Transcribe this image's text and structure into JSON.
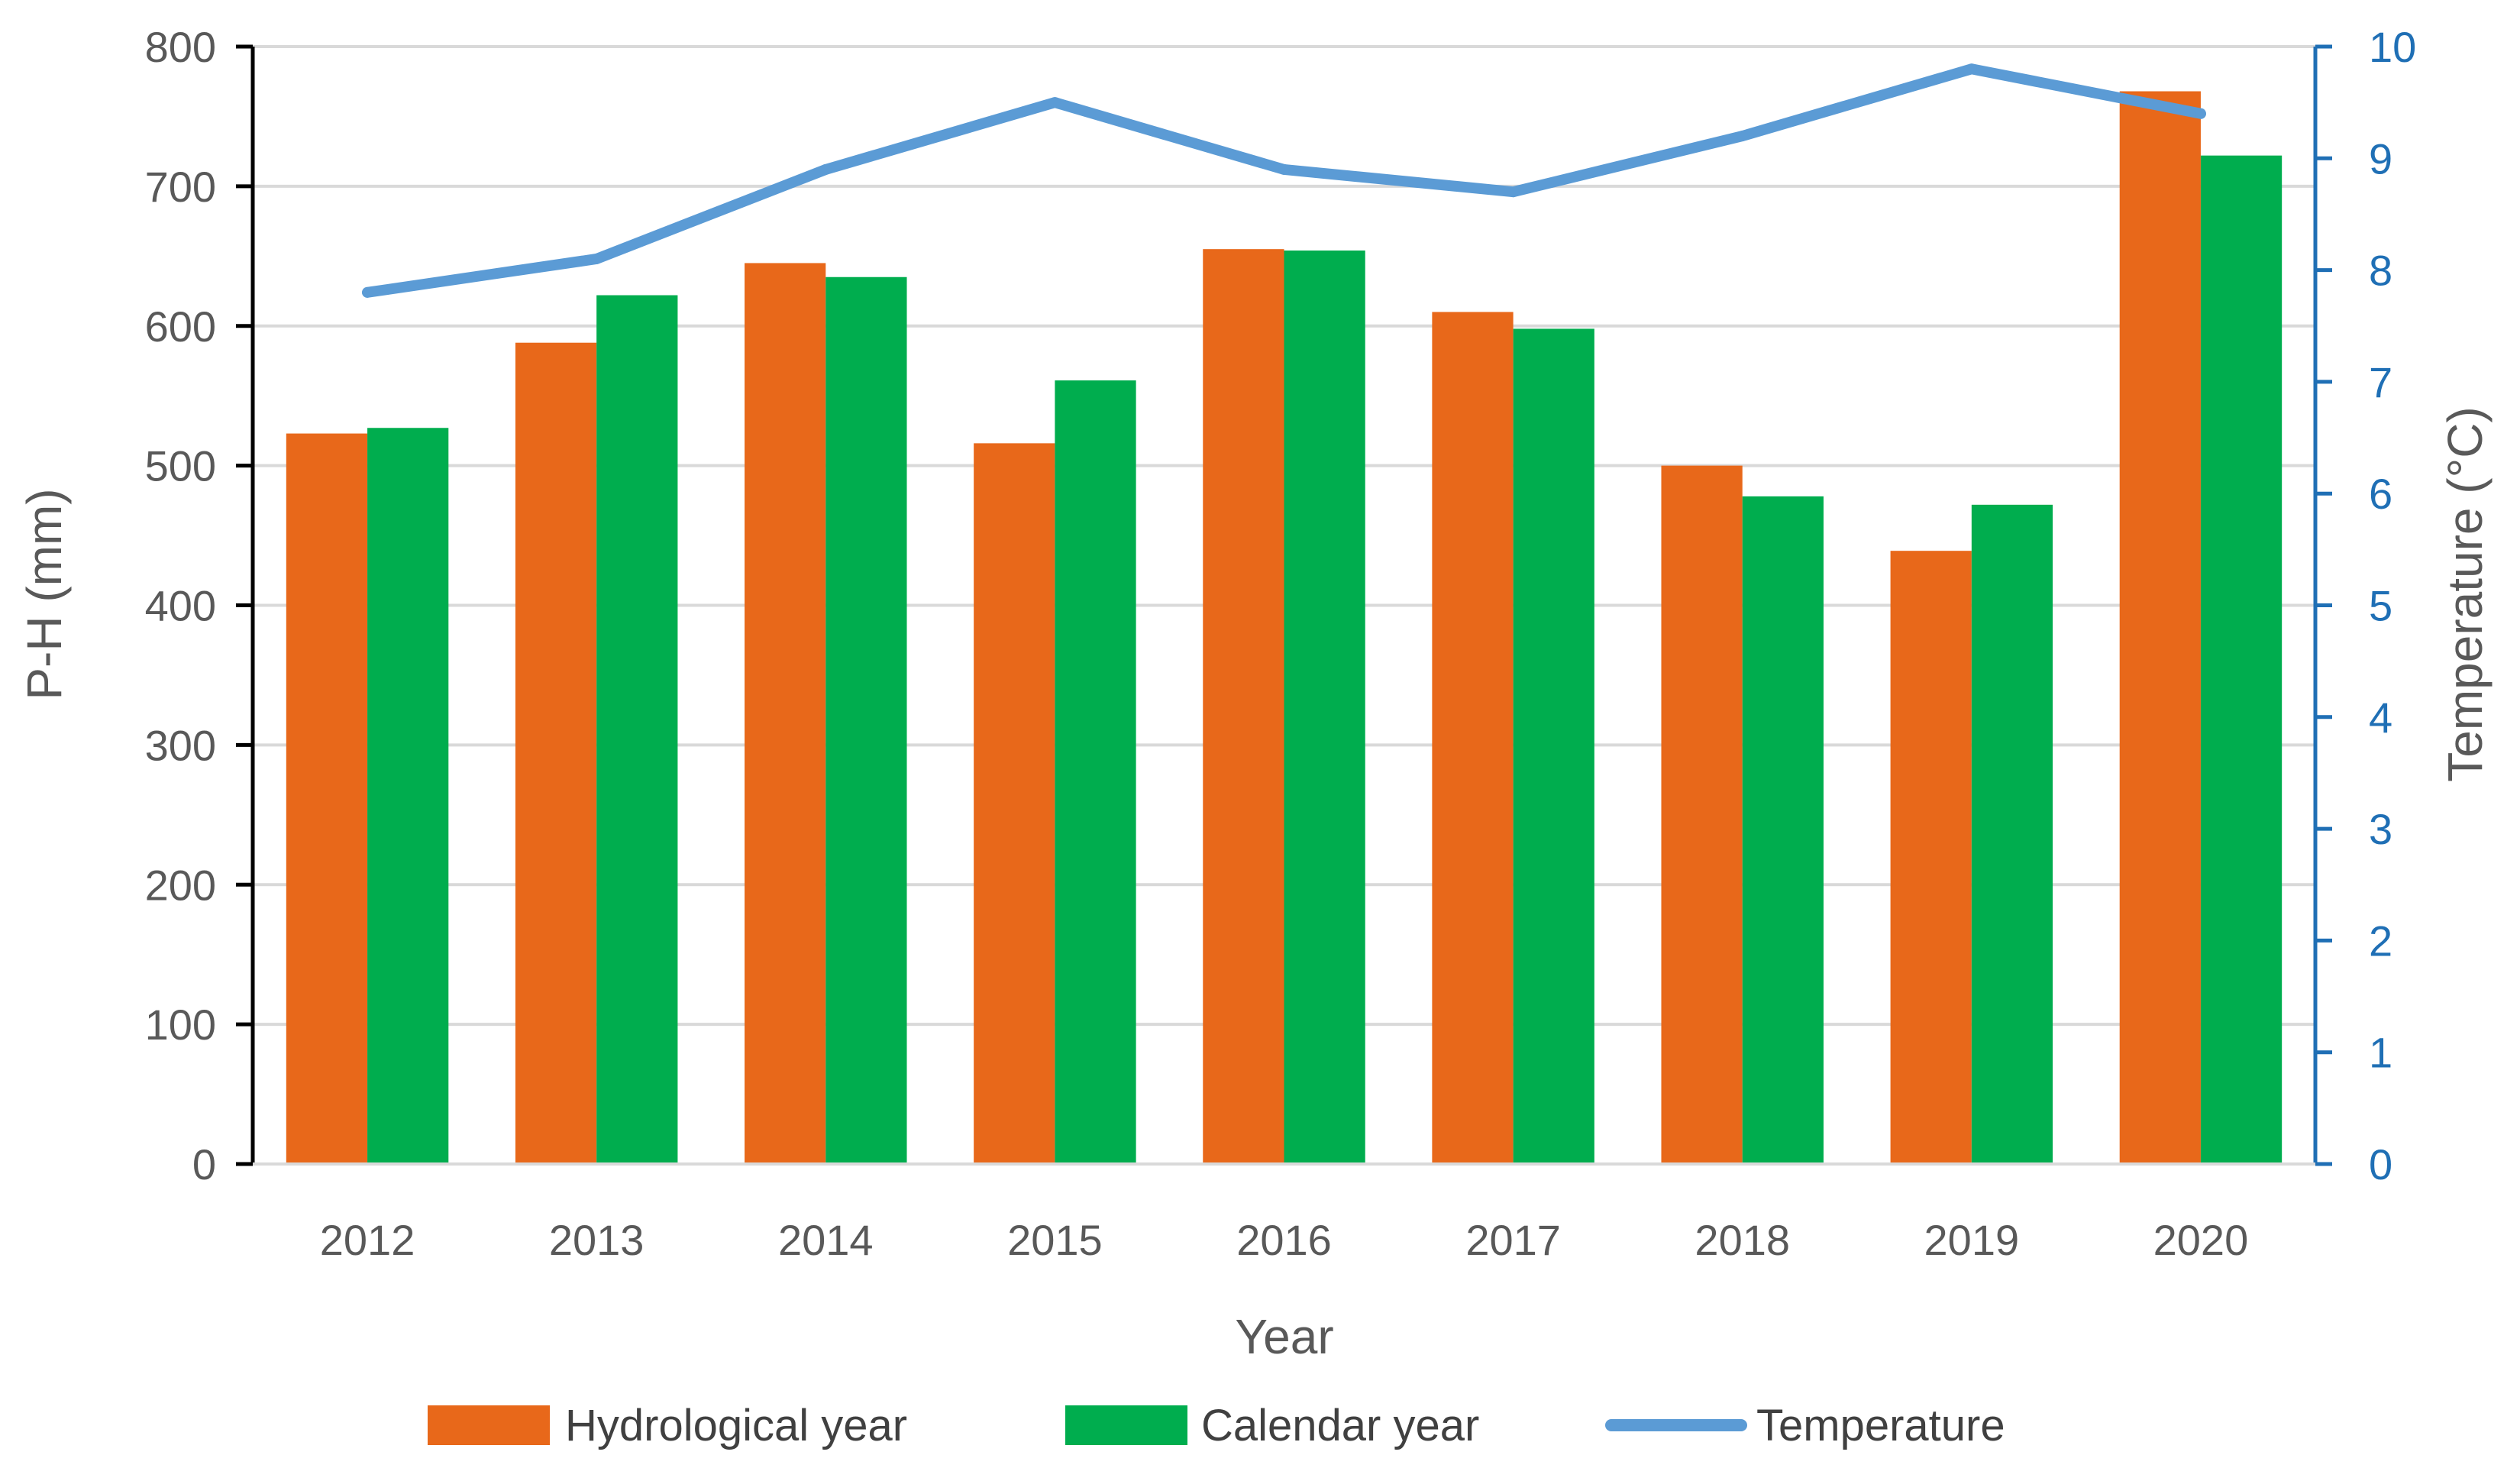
{
  "chart_data": {
    "type": "bar+line",
    "categories": [
      "2012",
      "2013",
      "2014",
      "2015",
      "2016",
      "2017",
      "2018",
      "2019",
      "2020"
    ],
    "series": [
      {
        "name": "Hydrological year",
        "type": "bar",
        "axis": "left",
        "color": "#E8681A",
        "values": [
          523,
          588,
          645,
          516,
          655,
          610,
          500,
          439,
          768
        ]
      },
      {
        "name": "Calendar year",
        "type": "bar",
        "axis": "left",
        "color": "#00AD4E",
        "values": [
          527,
          622,
          635,
          561,
          654,
          598,
          478,
          472,
          722
        ]
      },
      {
        "name": "Temperature",
        "type": "line",
        "axis": "right",
        "color": "#5B9BD5",
        "values": [
          7.8,
          8.1,
          8.9,
          9.5,
          8.9,
          8.7,
          9.2,
          9.8,
          9.4
        ]
      }
    ],
    "xlabel": "Year",
    "ylabel": "P-H (mm)",
    "y2label": "Temperature (°C)",
    "ylim": [
      0,
      800
    ],
    "y2lim": [
      0,
      10
    ],
    "yticks": [
      "0",
      "100",
      "200",
      "300",
      "400",
      "500",
      "600",
      "700",
      "800"
    ],
    "y2ticks": [
      "0",
      "1",
      "2",
      "3",
      "4",
      "5",
      "6",
      "7",
      "8",
      "9",
      "10"
    ],
    "y2_axis_color": "#1F6FB5",
    "grid": true,
    "legend_position": "bottom"
  }
}
